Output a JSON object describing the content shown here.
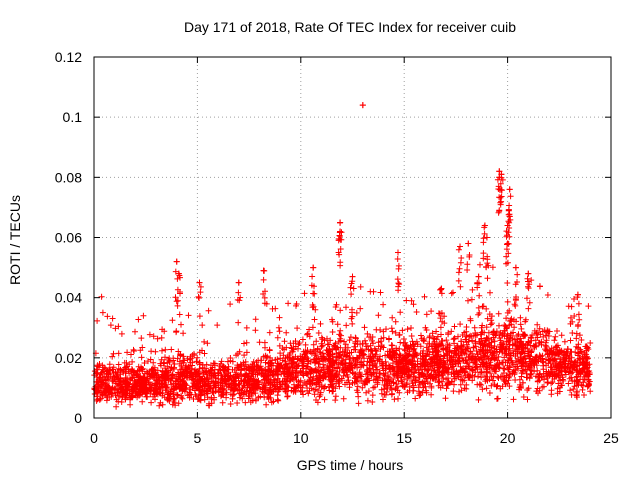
{
  "chart_data": {
    "type": "scatter",
    "title": "Day 171 of 2018, Rate Of TEC Index for receiver cuib",
    "xlabel": "GPS time / hours",
    "ylabel": "ROTI / TECUs",
    "xlim": [
      0,
      25
    ],
    "ylim": [
      0,
      0.12
    ],
    "x_ticks": [
      0,
      5,
      10,
      15,
      20,
      25
    ],
    "x_tick_labels": [
      "0",
      "5",
      "10",
      "15",
      "20",
      "25"
    ],
    "y_ticks": [
      0,
      0.02,
      0.04,
      0.06,
      0.08,
      0.1,
      0.12
    ],
    "y_tick_labels": [
      "0",
      "0.02",
      "0.04",
      "0.06",
      "0.08",
      "0.1",
      "0.12"
    ],
    "grid": true,
    "marker": "plus",
    "series": [
      {
        "name": "ROTI",
        "color": "#ff0000",
        "note": "dense cloud of ~4000 samples over 0-24 h; values mostly 0.005-0.035 TECU/min; notable excursions listed in highlights",
        "baseline_profile": [
          {
            "x": 0,
            "y": 0.011
          },
          {
            "x": 2,
            "y": 0.011
          },
          {
            "x": 4,
            "y": 0.013
          },
          {
            "x": 6,
            "y": 0.012
          },
          {
            "x": 8,
            "y": 0.013
          },
          {
            "x": 10,
            "y": 0.016
          },
          {
            "x": 12,
            "y": 0.018
          },
          {
            "x": 14,
            "y": 0.017
          },
          {
            "x": 16,
            "y": 0.017
          },
          {
            "x": 18,
            "y": 0.019
          },
          {
            "x": 20,
            "y": 0.022
          },
          {
            "x": 22,
            "y": 0.018
          },
          {
            "x": 24,
            "y": 0.016
          }
        ],
        "highlights": [
          {
            "x": 4.0,
            "y": 0.052
          },
          {
            "x": 4.1,
            "y": 0.048
          },
          {
            "x": 5.1,
            "y": 0.045
          },
          {
            "x": 7.0,
            "y": 0.045
          },
          {
            "x": 8.2,
            "y": 0.049
          },
          {
            "x": 10.6,
            "y": 0.05
          },
          {
            "x": 11.9,
            "y": 0.065
          },
          {
            "x": 11.9,
            "y": 0.062
          },
          {
            "x": 12.5,
            "y": 0.047
          },
          {
            "x": 13.0,
            "y": 0.104
          },
          {
            "x": 14.7,
            "y": 0.055
          },
          {
            "x": 16.8,
            "y": 0.043
          },
          {
            "x": 17.7,
            "y": 0.057
          },
          {
            "x": 18.1,
            "y": 0.058
          },
          {
            "x": 18.6,
            "y": 0.047
          },
          {
            "x": 18.9,
            "y": 0.064
          },
          {
            "x": 19.0,
            "y": 0.06
          },
          {
            "x": 19.6,
            "y": 0.082
          },
          {
            "x": 19.6,
            "y": 0.08
          },
          {
            "x": 19.7,
            "y": 0.081
          },
          {
            "x": 20.0,
            "y": 0.058
          },
          {
            "x": 20.1,
            "y": 0.076
          },
          {
            "x": 20.1,
            "y": 0.067
          },
          {
            "x": 20.0,
            "y": 0.064
          },
          {
            "x": 20.4,
            "y": 0.05
          },
          {
            "x": 21.0,
            "y": 0.048
          },
          {
            "x": 23.4,
            "y": 0.041
          }
        ]
      }
    ]
  }
}
